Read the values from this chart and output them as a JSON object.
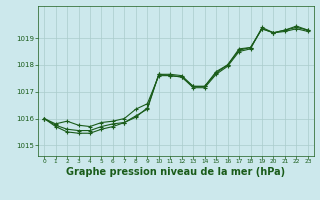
{
  "background_color": "#cce8ec",
  "grid_color": "#aacccc",
  "line_color": "#1a5c1a",
  "xlabel": "Graphe pression niveau de la mer (hPa)",
  "xlabel_fontsize": 7,
  "ylim": [
    1014.6,
    1020.2
  ],
  "xlim": [
    -0.5,
    23.5
  ],
  "yticks": [
    1015,
    1016,
    1017,
    1018,
    1019
  ],
  "xticks": [
    0,
    1,
    2,
    3,
    4,
    5,
    6,
    7,
    8,
    9,
    10,
    11,
    12,
    13,
    14,
    15,
    16,
    17,
    18,
    19,
    20,
    21,
    22,
    23
  ],
  "series1_x": [
    0,
    1,
    2,
    3,
    4,
    5,
    6,
    7,
    8,
    9,
    10,
    11,
    12,
    13,
    14,
    15,
    16,
    17,
    18,
    19,
    20,
    21,
    22,
    23
  ],
  "series1_y": [
    1016.0,
    1015.8,
    1015.9,
    1015.75,
    1015.7,
    1015.85,
    1015.9,
    1016.0,
    1016.35,
    1016.55,
    1017.6,
    1017.6,
    1017.55,
    1017.2,
    1017.2,
    1017.75,
    1018.0,
    1018.6,
    1018.65,
    1019.35,
    1019.2,
    1019.3,
    1019.45,
    1019.3
  ],
  "series2_x": [
    0,
    1,
    2,
    3,
    4,
    5,
    6,
    7,
    8,
    9,
    10,
    11,
    12,
    13,
    14,
    15,
    16,
    17,
    18,
    19,
    20,
    21,
    22,
    23
  ],
  "series2_y": [
    1016.0,
    1015.75,
    1015.6,
    1015.55,
    1015.55,
    1015.7,
    1015.8,
    1015.85,
    1016.1,
    1016.35,
    1017.65,
    1017.65,
    1017.6,
    1017.2,
    1017.2,
    1017.7,
    1018.0,
    1018.55,
    1018.65,
    1019.35,
    1019.2,
    1019.3,
    1019.4,
    1019.3
  ],
  "series3_x": [
    0,
    1,
    2,
    3,
    4,
    5,
    6,
    7,
    8,
    9,
    10,
    11,
    12,
    13,
    14,
    15,
    16,
    17,
    18,
    19,
    20,
    21,
    22,
    23
  ],
  "series3_y": [
    1016.0,
    1015.7,
    1015.5,
    1015.45,
    1015.45,
    1015.6,
    1015.7,
    1015.85,
    1016.05,
    1016.4,
    1017.65,
    1017.6,
    1017.55,
    1017.15,
    1017.15,
    1017.65,
    1017.95,
    1018.5,
    1018.6,
    1019.4,
    1019.2,
    1019.25,
    1019.35,
    1019.25
  ]
}
